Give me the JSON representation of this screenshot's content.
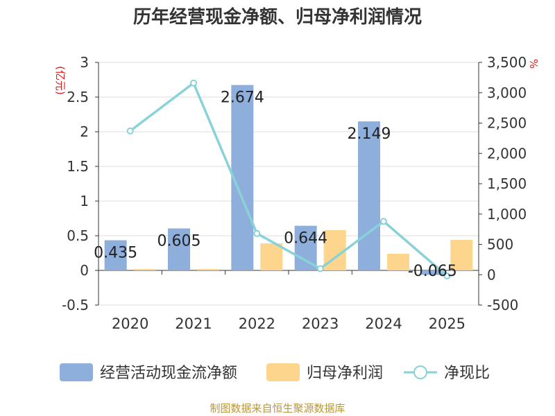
{
  "chart_data": {
    "type": "bar",
    "title": "历年经营现金净额、归母净利润情况",
    "categories": [
      "2020",
      "2021",
      "2022",
      "2023",
      "2024",
      "2025"
    ],
    "series": [
      {
        "name": "经营活动现金流净额",
        "kind": "bar",
        "axis": "left",
        "color": "#8eaedc",
        "values": [
          0.435,
          0.605,
          2.674,
          0.644,
          2.149,
          -0.065
        ],
        "labels": [
          "0.435",
          "0.605",
          "2.674",
          "0.644",
          "2.149",
          "-0.065"
        ]
      },
      {
        "name": "归母净利润",
        "kind": "bar",
        "axis": "left",
        "color": "#fdd58c",
        "values": [
          0.02,
          0.02,
          0.39,
          0.58,
          0.24,
          0.44
        ]
      },
      {
        "name": "净现比",
        "kind": "line",
        "axis": "right",
        "color": "#88d2d8",
        "values": [
          2370,
          3160,
          680,
          100,
          880,
          -20
        ]
      }
    ],
    "y_left": {
      "label": "(亿元)",
      "min": -0.5,
      "max": 3,
      "ticks": [
        -0.5,
        0,
        0.5,
        1,
        1.5,
        2,
        2.5,
        3
      ],
      "tick_labels": [
        "-0.5",
        "0",
        "0.5",
        "1",
        "1.5",
        "2",
        "2.5",
        "3"
      ]
    },
    "y_right": {
      "label": "%",
      "min": -500,
      "max": 3500,
      "ticks": [
        -500,
        0,
        500,
        1000,
        1500,
        2000,
        2500,
        3000,
        3500
      ],
      "tick_labels": [
        "-500",
        "0",
        "500",
        "1,000",
        "1,500",
        "2,000",
        "2,500",
        "3,000",
        "3,500"
      ]
    },
    "legend_position": "bottom",
    "grid": true
  },
  "source": "制图数据来自恒生聚源数据库"
}
